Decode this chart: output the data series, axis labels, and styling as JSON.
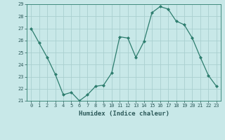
{
  "x": [
    0,
    1,
    2,
    3,
    4,
    5,
    6,
    7,
    8,
    9,
    10,
    11,
    12,
    13,
    14,
    15,
    16,
    17,
    18,
    19,
    20,
    21,
    22,
    23
  ],
  "y": [
    27,
    25.8,
    24.6,
    23.2,
    21.5,
    21.7,
    21.0,
    21.5,
    22.2,
    22.3,
    23.3,
    26.3,
    26.2,
    24.6,
    25.9,
    28.3,
    28.8,
    28.6,
    27.6,
    27.3,
    26.2,
    24.6,
    23.1,
    22.2
  ],
  "line_color": "#2d7d6e",
  "marker_color": "#2d7d6e",
  "bg_color": "#c8e8e8",
  "plot_bg_color": "#c8e8e8",
  "grid_color": "#aacfcf",
  "axis_color": "#2d7d6e",
  "bottom_bar_color": "#3a8a7a",
  "tick_label_color": "#2d5a5a",
  "xlabel": "Humidex (Indice chaleur)",
  "ylim": [
    21,
    29
  ],
  "xlim": [
    -0.5,
    23.5
  ],
  "yticks": [
    21,
    22,
    23,
    24,
    25,
    26,
    27,
    28,
    29
  ],
  "xticks": [
    0,
    1,
    2,
    3,
    4,
    5,
    6,
    7,
    8,
    9,
    10,
    11,
    12,
    13,
    14,
    15,
    16,
    17,
    18,
    19,
    20,
    21,
    22,
    23
  ]
}
